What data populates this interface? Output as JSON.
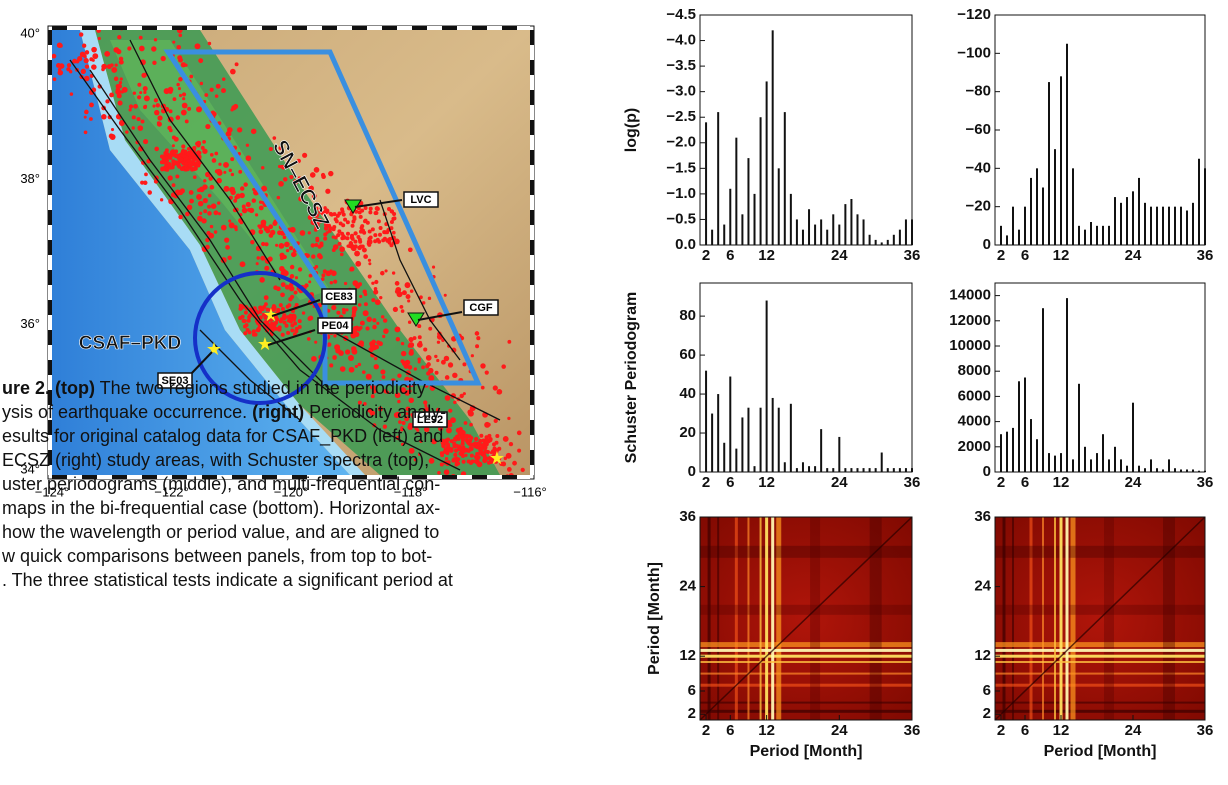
{
  "map": {
    "x_ticks": [
      "−124°",
      "−122°",
      "−120°",
      "−118°",
      "−116°"
    ],
    "y_ticks": [
      "34°",
      "36°",
      "38°",
      "40°"
    ],
    "regions": [
      "SN–ECSZ",
      "CSAF–PKD"
    ],
    "sites": [
      "LVC",
      "CE83",
      "PE04",
      "SE03",
      "CGF",
      "LE92"
    ]
  },
  "caption": {
    "lines": [
      [
        {
          "text": "ure 2. (top)",
          "bold": true
        },
        {
          "text": " The two regions studied in the periodicity"
        }
      ],
      [
        {
          "text": "ysis of earthquake occurrence. "
        },
        {
          "text": "(right)",
          "bold": true
        },
        {
          "text": " Periodicity analy-"
        }
      ],
      [
        {
          "text": "esults for original catalog data for CSAF_PKD (left) and"
        }
      ],
      [
        {
          "text": "ECSZ (right) study areas, with Schuster spectra (top),"
        }
      ],
      [
        {
          "text": "uster periodograms (middle), and multi-frequential con-"
        }
      ],
      [
        {
          "text": "maps in the bi-frequential case (bottom). Horizontal ax-"
        }
      ],
      [
        {
          "text": "how the wavelength or period value, and are aligned to"
        }
      ],
      [
        {
          "text": "w quick comparisons between panels, from top to bot-"
        }
      ],
      [
        {
          "text": ". The three statistical tests indicate a significant period at"
        }
      ]
    ]
  },
  "chart_data": [
    {
      "type": "bar",
      "ylabel": "log(p)",
      "color": "#111111",
      "x": [
        2,
        3,
        4,
        5,
        6,
        7,
        8,
        9,
        10,
        11,
        12,
        13,
        14,
        15,
        16,
        17,
        18,
        19,
        20,
        21,
        22,
        23,
        24,
        25,
        26,
        27,
        28,
        29,
        30,
        31,
        32,
        33,
        34,
        35,
        36
      ],
      "values": [
        -2.4,
        -0.3,
        -2.6,
        -0.4,
        -1.1,
        -2.1,
        -0.6,
        -1.7,
        -1.0,
        -2.5,
        -3.2,
        -4.2,
        -1.5,
        -2.6,
        -1.0,
        -0.5,
        -0.3,
        -0.7,
        -0.4,
        -0.5,
        -0.3,
        -0.6,
        -0.4,
        -0.8,
        -0.9,
        -0.6,
        -0.5,
        -0.2,
        -0.1,
        -0.05,
        -0.1,
        -0.2,
        -0.3,
        -0.5,
        -0.5
      ],
      "xlim": [
        1,
        36
      ],
      "xticks": [
        2,
        6,
        12,
        24,
        36
      ],
      "ylim": [
        0,
        -4.5
      ],
      "yticks": [
        {
          "value": 0,
          "label": "0.0"
        },
        {
          "value": -0.5,
          "label": "−0.5"
        },
        {
          "value": -1,
          "label": "−1.0"
        },
        {
          "value": -1.5,
          "label": "−1.5"
        },
        {
          "value": -2,
          "label": "−2.0"
        },
        {
          "value": -2.5,
          "label": "−2.5"
        },
        {
          "value": -3,
          "label": "−3.0"
        },
        {
          "value": -3.5,
          "label": "−3.5"
        },
        {
          "value": -4,
          "label": "−4.0"
        },
        {
          "value": -4.5,
          "label": "−4.5"
        }
      ]
    },
    {
      "type": "bar",
      "color": "#111111",
      "x": [
        2,
        3,
        4,
        5,
        6,
        7,
        8,
        9,
        10,
        11,
        12,
        13,
        14,
        15,
        16,
        17,
        18,
        19,
        20,
        21,
        22,
        23,
        24,
        25,
        26,
        27,
        28,
        29,
        30,
        31,
        32,
        33,
        34,
        35,
        36
      ],
      "values": [
        -10,
        -5,
        -20,
        -8,
        -20,
        -35,
        -40,
        -30,
        -85,
        -50,
        -88,
        -105,
        -40,
        -10,
        -8,
        -12,
        -10,
        -10,
        -10,
        -25,
        -22,
        -25,
        -28,
        -35,
        -22,
        -20,
        -20,
        -20,
        -20,
        -20,
        -20,
        -18,
        -22,
        -45,
        -40
      ],
      "xlim": [
        1,
        36
      ],
      "xticks": [
        2,
        6,
        12,
        24,
        36
      ],
      "ylim": [
        0,
        -120
      ],
      "yticks": [
        0,
        {
          "value": -20,
          "label": "−20"
        },
        {
          "value": -40,
          "label": "−40"
        },
        {
          "value": -60,
          "label": "−60"
        },
        {
          "value": -80,
          "label": "−80"
        },
        {
          "value": -100,
          "label": "−100"
        },
        {
          "value": -120,
          "label": "−120"
        }
      ]
    },
    {
      "type": "bar",
      "ylabel": "Schuster Periodogram",
      "color": "#111111",
      "x": [
        2,
        3,
        4,
        5,
        6,
        7,
        8,
        9,
        10,
        11,
        12,
        13,
        14,
        15,
        16,
        17,
        18,
        19,
        20,
        21,
        22,
        23,
        24,
        25,
        26,
        27,
        28,
        29,
        30,
        31,
        32,
        33,
        34,
        35,
        36
      ],
      "values": [
        52,
        30,
        40,
        15,
        49,
        12,
        28,
        33,
        3,
        33,
        88,
        38,
        33,
        5,
        35,
        2,
        5,
        3,
        3,
        22,
        2,
        2,
        18,
        2,
        2,
        2,
        2,
        2,
        2,
        10,
        2,
        2,
        2,
        2,
        2
      ],
      "xlim": [
        1,
        36
      ],
      "xticks": [
        2,
        6,
        12,
        24,
        36
      ],
      "ylim": [
        0,
        97
      ],
      "yticks": [
        0,
        20,
        40,
        60,
        80
      ]
    },
    {
      "type": "bar",
      "color": "#111111",
      "x": [
        2,
        3,
        4,
        5,
        6,
        7,
        8,
        9,
        10,
        11,
        12,
        13,
        14,
        15,
        16,
        17,
        18,
        19,
        20,
        21,
        22,
        23,
        24,
        25,
        26,
        27,
        28,
        29,
        30,
        31,
        32,
        33,
        34,
        35,
        36
      ],
      "values": [
        3000,
        3200,
        3500,
        7200,
        7500,
        4200,
        2600,
        13000,
        1500,
        1300,
        1500,
        13800,
        1000,
        7000,
        2000,
        1000,
        1500,
        3000,
        1000,
        2000,
        1000,
        500,
        5500,
        500,
        300,
        1000,
        300,
        200,
        1000,
        300,
        200,
        200,
        200,
        100,
        100
      ],
      "xlim": [
        1,
        36
      ],
      "xticks": [
        2,
        6,
        12,
        24,
        36
      ],
      "ylim": [
        0,
        15000
      ],
      "yticks": [
        0,
        2000,
        4000,
        6000,
        8000,
        10000,
        12000,
        14000
      ]
    },
    {
      "type": "heatmap",
      "xlabel": "Period [Month]",
      "ylabel": "Period [Month]",
      "xlim": [
        1,
        36
      ],
      "xticks": [
        2,
        6,
        12,
        24,
        36
      ],
      "ylim": [
        1,
        36
      ],
      "yticks": [
        2,
        6,
        12,
        24,
        36
      ]
    },
    {
      "type": "heatmap",
      "xlabel": "Period [Month]",
      "xlim": [
        1,
        36
      ],
      "xticks": [
        2,
        6,
        12,
        24,
        36
      ],
      "ylim": [
        1,
        36
      ],
      "yticks": [
        2,
        6,
        12,
        24,
        36
      ]
    }
  ]
}
